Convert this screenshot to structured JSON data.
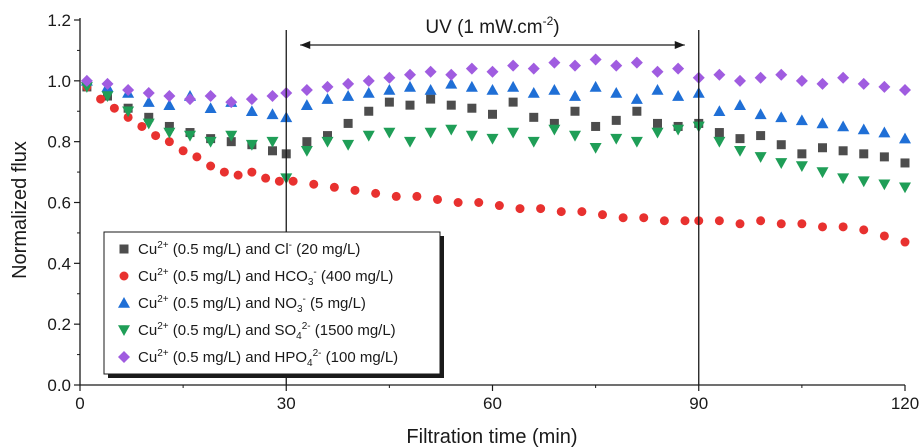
{
  "chart_data": {
    "type": "scatter",
    "xlabel": "Filtration time (min)",
    "ylabel": "Normalized flux",
    "xlim": [
      0,
      120
    ],
    "ylim": [
      0,
      1.2
    ],
    "xticks": [
      "0",
      "30",
      "60",
      "90",
      "120"
    ],
    "yticks": [
      "0.0",
      "0.2",
      "0.4",
      "0.6",
      "0.8",
      "1.0",
      "1.2"
    ],
    "grid": false,
    "legend_position": "bottom-left",
    "annotation": {
      "text": "UV (1 mW.cm",
      "sup": "-2",
      "suffix": ")",
      "x_start": 30,
      "x_end": 90
    },
    "vertical_lines": [
      30,
      90
    ],
    "series": [
      {
        "name": "Cu2+ (0.5 mg/L) and Cl- (20 mg/L)",
        "legend_parts": [
          [
            "Cu",
            ""
          ],
          [
            "2+",
            "sup"
          ],
          [
            " (0.5 mg/L) and Cl",
            ""
          ],
          [
            "-",
            "sup"
          ],
          [
            " (20 mg/L)",
            ""
          ]
        ],
        "marker": "square",
        "color": "#4d4d4d",
        "x": [
          1,
          4,
          7,
          10,
          13,
          16,
          19,
          22,
          25,
          28,
          30,
          33,
          36,
          39,
          42,
          45,
          48,
          51,
          54,
          57,
          60,
          63,
          66,
          69,
          72,
          75,
          78,
          81,
          84,
          87,
          90,
          93,
          96,
          99,
          102,
          105,
          108,
          111,
          114,
          117,
          120
        ],
        "y": [
          0.98,
          0.95,
          0.91,
          0.88,
          0.85,
          0.83,
          0.81,
          0.8,
          0.79,
          0.77,
          0.76,
          0.8,
          0.82,
          0.86,
          0.9,
          0.93,
          0.92,
          0.94,
          0.92,
          0.91,
          0.89,
          0.93,
          0.88,
          0.86,
          0.9,
          0.85,
          0.87,
          0.9,
          0.86,
          0.85,
          0.86,
          0.83,
          0.81,
          0.82,
          0.79,
          0.76,
          0.78,
          0.77,
          0.76,
          0.75,
          0.73
        ]
      },
      {
        "name": "Cu2+ (0.5 mg/L) and HCO3- (400 mg/L)",
        "legend_parts": [
          [
            "Cu",
            ""
          ],
          [
            "2+",
            "sup"
          ],
          [
            " (0.5 mg/L) and HCO",
            ""
          ],
          [
            "3",
            "sub"
          ],
          [
            "-",
            "sup"
          ],
          [
            " (400 mg/L)",
            ""
          ]
        ],
        "marker": "circle",
        "color": "#e8312f",
        "x": [
          1,
          3,
          5,
          7,
          9,
          11,
          13,
          15,
          17,
          19,
          21,
          23,
          25,
          27,
          29,
          31,
          34,
          37,
          40,
          43,
          46,
          49,
          52,
          55,
          58,
          61,
          64,
          67,
          70,
          73,
          76,
          79,
          82,
          85,
          88,
          90,
          93,
          96,
          99,
          102,
          105,
          108,
          111,
          114,
          117,
          120
        ],
        "y": [
          0.98,
          0.94,
          0.91,
          0.88,
          0.85,
          0.82,
          0.8,
          0.77,
          0.75,
          0.72,
          0.7,
          0.69,
          0.7,
          0.68,
          0.67,
          0.67,
          0.66,
          0.65,
          0.64,
          0.63,
          0.62,
          0.62,
          0.61,
          0.6,
          0.6,
          0.59,
          0.58,
          0.58,
          0.57,
          0.57,
          0.56,
          0.55,
          0.55,
          0.54,
          0.54,
          0.54,
          0.54,
          0.53,
          0.54,
          0.53,
          0.53,
          0.52,
          0.52,
          0.51,
          0.49,
          0.47
        ]
      },
      {
        "name": "Cu2+ (0.5 mg/L) and NO3- (5 mg/L)",
        "legend_parts": [
          [
            "Cu",
            ""
          ],
          [
            "2+",
            "sup"
          ],
          [
            " (0.5 mg/L) and NO",
            ""
          ],
          [
            "3",
            "sub"
          ],
          [
            "-",
            "sup"
          ],
          [
            " (5 mg/L)",
            ""
          ]
        ],
        "marker": "triangle-up",
        "color": "#1f6fd6",
        "x": [
          1,
          4,
          7,
          10,
          13,
          16,
          19,
          22,
          25,
          28,
          30,
          33,
          36,
          39,
          42,
          45,
          48,
          51,
          54,
          57,
          60,
          63,
          66,
          69,
          72,
          75,
          78,
          81,
          84,
          87,
          90,
          93,
          96,
          99,
          102,
          105,
          108,
          111,
          114,
          117,
          120
        ],
        "y": [
          1.0,
          0.98,
          0.96,
          0.93,
          0.92,
          0.95,
          0.91,
          0.93,
          0.9,
          0.89,
          0.88,
          0.92,
          0.94,
          0.95,
          0.96,
          0.97,
          0.98,
          0.97,
          0.99,
          0.98,
          0.97,
          0.98,
          0.96,
          0.97,
          0.95,
          0.98,
          0.96,
          0.94,
          0.97,
          0.95,
          0.96,
          0.9,
          0.92,
          0.89,
          0.88,
          0.87,
          0.86,
          0.85,
          0.84,
          0.83,
          0.81
        ]
      },
      {
        "name": "Cu2+ (0.5 mg/L) and SO42- (1500 mg/L)",
        "legend_parts": [
          [
            "Cu",
            ""
          ],
          [
            "2+",
            "sup"
          ],
          [
            " (0.5 mg/L) and SO",
            ""
          ],
          [
            "4",
            "sub"
          ],
          [
            "2-",
            "sup"
          ],
          [
            " (1500 mg/L)",
            ""
          ]
        ],
        "marker": "triangle-down",
        "color": "#1f9e57",
        "x": [
          1,
          4,
          7,
          10,
          13,
          16,
          19,
          22,
          25,
          28,
          30,
          33,
          36,
          39,
          42,
          45,
          48,
          51,
          54,
          57,
          60,
          63,
          66,
          69,
          72,
          75,
          78,
          81,
          84,
          87,
          90,
          93,
          96,
          99,
          102,
          105,
          108,
          111,
          114,
          117,
          120
        ],
        "y": [
          0.98,
          0.95,
          0.9,
          0.86,
          0.83,
          0.82,
          0.8,
          0.82,
          0.79,
          0.8,
          0.68,
          0.77,
          0.8,
          0.79,
          0.82,
          0.83,
          0.8,
          0.83,
          0.84,
          0.82,
          0.81,
          0.83,
          0.8,
          0.84,
          0.82,
          0.78,
          0.81,
          0.8,
          0.83,
          0.84,
          0.85,
          0.8,
          0.77,
          0.75,
          0.73,
          0.72,
          0.7,
          0.68,
          0.67,
          0.66,
          0.65
        ]
      },
      {
        "name": "Cu2+ (0.5 mg/L) and HPO42- (100 mg/L)",
        "legend_parts": [
          [
            "Cu",
            ""
          ],
          [
            "2+",
            "sup"
          ],
          [
            " (0.5 mg/L) and HPO",
            ""
          ],
          [
            "4",
            "sub"
          ],
          [
            "2-",
            "sup"
          ],
          [
            " (100 mg/L)",
            ""
          ]
        ],
        "marker": "diamond",
        "color": "#a05ce0",
        "x": [
          1,
          4,
          7,
          10,
          13,
          16,
          19,
          22,
          25,
          28,
          30,
          33,
          36,
          39,
          42,
          45,
          48,
          51,
          54,
          57,
          60,
          63,
          66,
          69,
          72,
          75,
          78,
          81,
          84,
          87,
          90,
          93,
          96,
          99,
          102,
          105,
          108,
          111,
          114,
          117,
          120
        ],
        "y": [
          1.0,
          0.99,
          0.97,
          0.96,
          0.95,
          0.94,
          0.95,
          0.93,
          0.94,
          0.95,
          0.96,
          0.97,
          0.98,
          0.99,
          1.0,
          1.01,
          1.02,
          1.03,
          1.02,
          1.04,
          1.03,
          1.05,
          1.04,
          1.06,
          1.05,
          1.07,
          1.05,
          1.06,
          1.03,
          1.04,
          1.01,
          1.02,
          1.0,
          1.01,
          1.02,
          1.0,
          0.99,
          1.01,
          0.99,
          0.98,
          0.97
        ]
      }
    ]
  }
}
